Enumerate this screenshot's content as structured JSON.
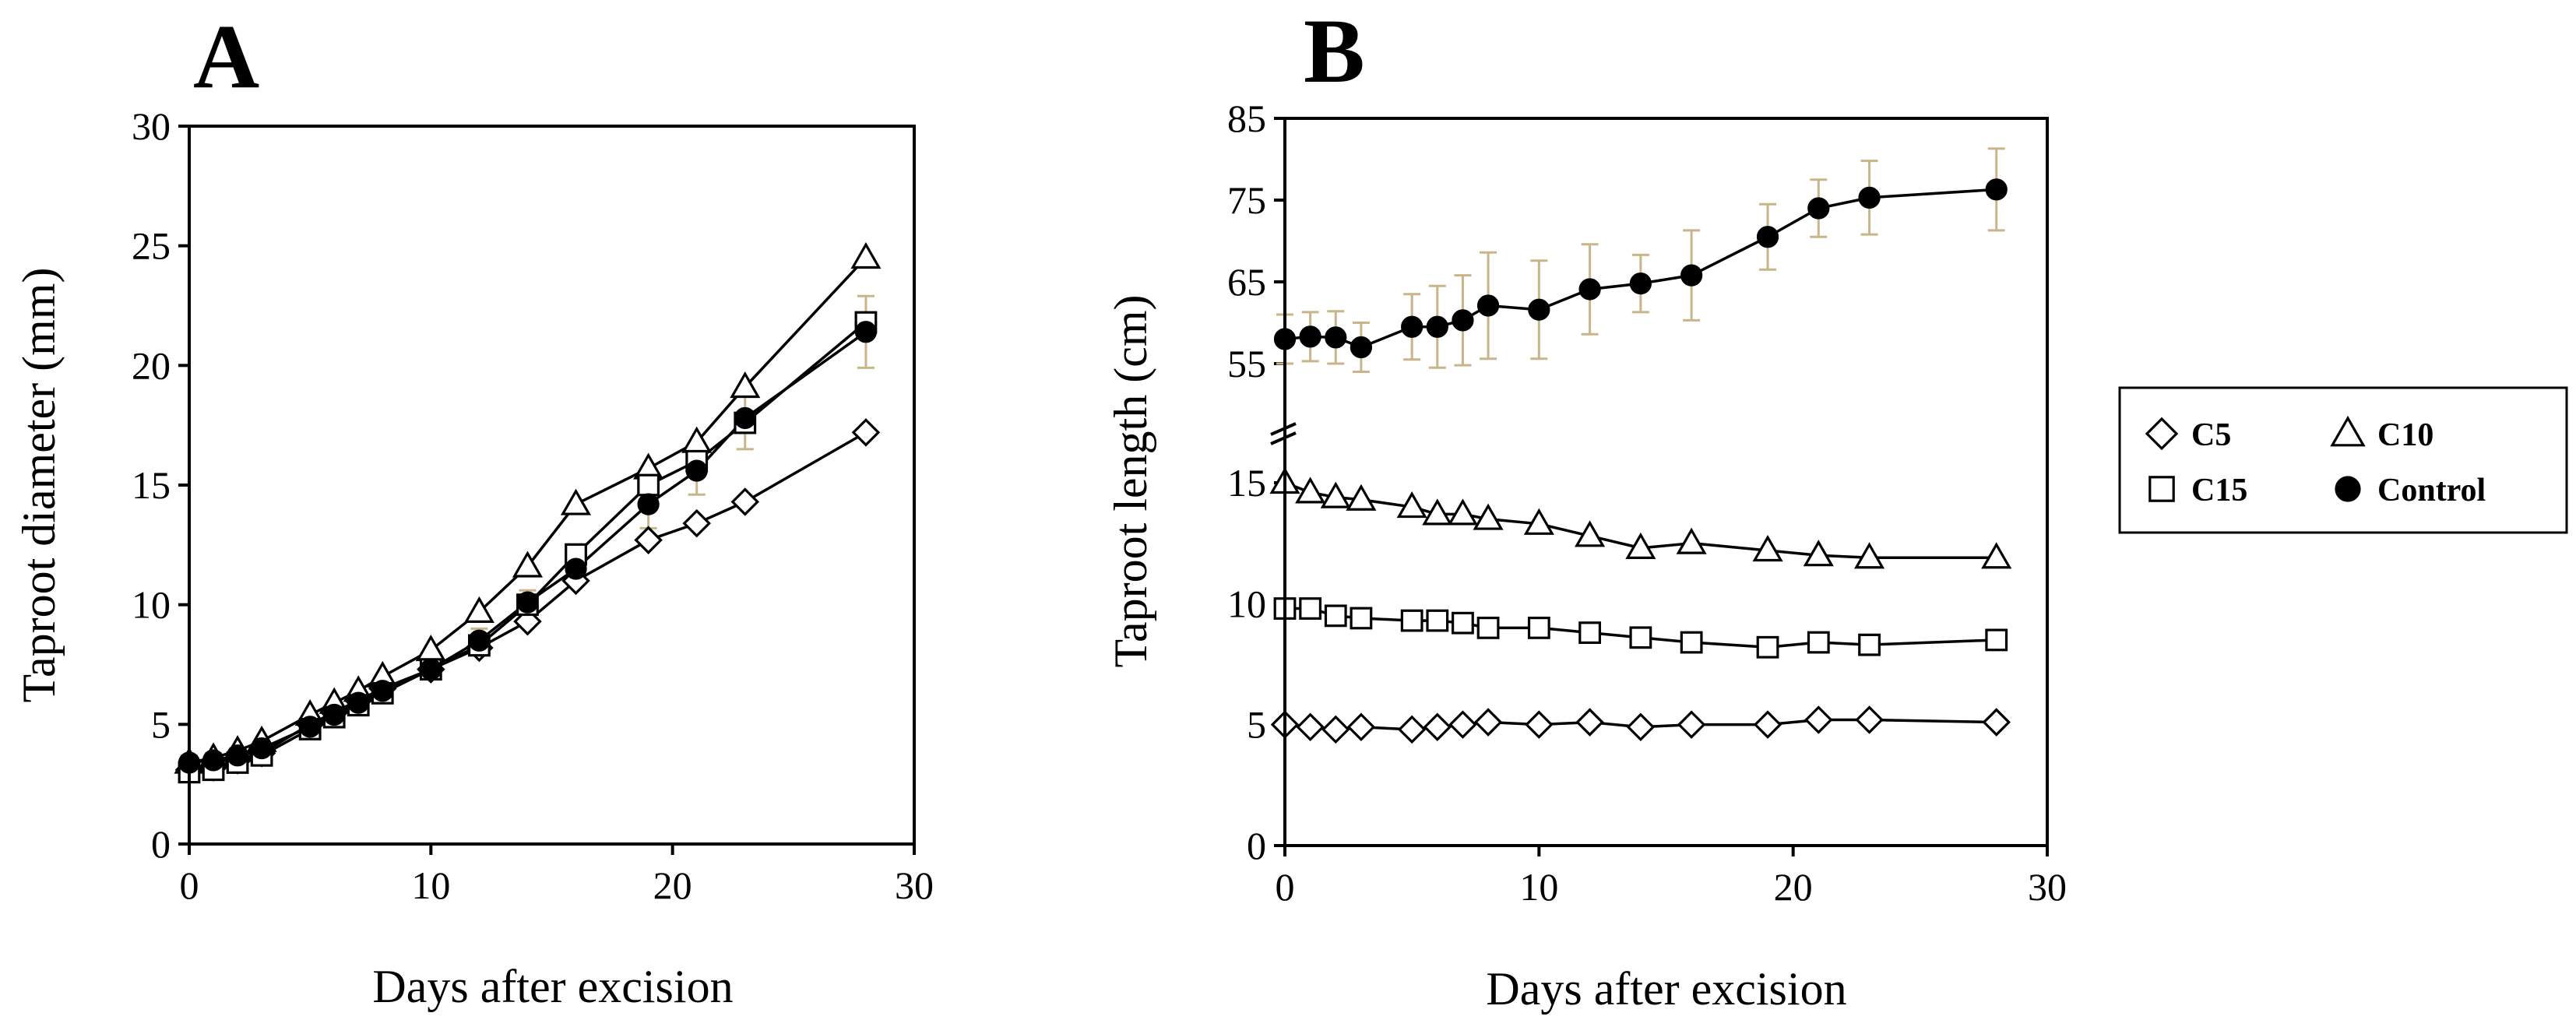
{
  "colors": {
    "ink": "#000000",
    "marker_fill_open": "#ffffff",
    "error_bar": "#c8b58a"
  },
  "legend": {
    "entries": [
      {
        "label": "C5",
        "marker": "diamond-open"
      },
      {
        "label": "C10",
        "marker": "triangle-open"
      },
      {
        "label": "C15",
        "marker": "square-open"
      },
      {
        "label": "Control",
        "marker": "circle-filled"
      }
    ]
  },
  "chart_data": [
    {
      "type": "line",
      "panel_label": "A",
      "title": "",
      "xlabel": "Days after excision",
      "ylabel": "Taproot  diameter (mm)",
      "xlim": [
        0,
        30
      ],
      "ylim": [
        0,
        30
      ],
      "xticks": [
        "0",
        "10",
        "20",
        "30"
      ],
      "yticks": [
        "0",
        "5",
        "10",
        "15",
        "20",
        "25",
        "30"
      ],
      "x": [
        0,
        1,
        2,
        3,
        5,
        6,
        7,
        8,
        10,
        12,
        14,
        16,
        19,
        21,
        23,
        28
      ],
      "series": [
        {
          "name": "C5",
          "marker": "diamond-open",
          "values": [
            3.1,
            3.2,
            3.5,
            3.8,
            5.0,
            5.5,
            6.0,
            6.5,
            7.3,
            8.2,
            9.3,
            11.0,
            12.7,
            13.4,
            14.3,
            17.2
          ]
        },
        {
          "name": "C10",
          "marker": "triangle-open",
          "values": [
            3.4,
            3.6,
            3.9,
            4.3,
            5.4,
            5.9,
            6.4,
            7.0,
            8.1,
            9.7,
            11.6,
            14.2,
            15.7,
            16.8,
            19.1,
            24.5
          ]
        },
        {
          "name": "C15",
          "marker": "square-open",
          "values": [
            3.0,
            3.1,
            3.4,
            3.7,
            4.8,
            5.3,
            5.8,
            6.3,
            7.3,
            8.3,
            10.0,
            12.1,
            15.0,
            16.0,
            17.6,
            21.8
          ]
        },
        {
          "name": "Control",
          "marker": "circle-filled",
          "values": [
            3.4,
            3.5,
            3.7,
            4.0,
            4.9,
            5.4,
            5.9,
            6.4,
            7.3,
            8.5,
            10.1,
            11.5,
            14.2,
            15.6,
            17.8,
            21.4
          ],
          "errors": [
            0.3,
            0.3,
            0.3,
            0.3,
            0.3,
            0.3,
            0.3,
            0.3,
            0.4,
            0.5,
            0.5,
            0.6,
            1.0,
            1.0,
            1.3,
            1.5
          ]
        }
      ]
    },
    {
      "type": "line",
      "panel_label": "B",
      "title": "",
      "xlabel": "Days after excision",
      "ylabel": "Taproot length (cm)",
      "xlim": [
        0,
        30
      ],
      "axis_break": true,
      "lower_ylim": [
        0,
        15
      ],
      "upper_ylim": [
        55,
        85
      ],
      "xticks": [
        "0",
        "10",
        "20",
        "30"
      ],
      "yticks_lower": [
        "0",
        "5",
        "10",
        "15"
      ],
      "yticks_upper": [
        "55",
        "65",
        "75",
        "85"
      ],
      "x": [
        0,
        1,
        2,
        3,
        5,
        6,
        7,
        8,
        10,
        12,
        14,
        16,
        19,
        21,
        23,
        28
      ],
      "series": [
        {
          "name": "C5",
          "marker": "diamond-open",
          "values": [
            5.0,
            4.9,
            4.8,
            4.9,
            4.8,
            4.9,
            5.0,
            5.1,
            5.0,
            5.1,
            4.9,
            5.0,
            5.0,
            5.2,
            5.2,
            5.1
          ]
        },
        {
          "name": "C10",
          "marker": "triangle-open",
          "values": [
            15.0,
            14.6,
            14.4,
            14.3,
            14.0,
            13.7,
            13.7,
            13.5,
            13.3,
            12.8,
            12.3,
            12.5,
            12.2,
            12.0,
            11.9,
            11.9
          ]
        },
        {
          "name": "C15",
          "marker": "square-open",
          "values": [
            9.8,
            9.8,
            9.5,
            9.4,
            9.3,
            9.3,
            9.2,
            9.0,
            9.0,
            8.8,
            8.6,
            8.4,
            8.2,
            8.4,
            8.3,
            8.5
          ]
        },
        {
          "name": "Control",
          "marker": "circle-filled",
          "values": [
            58.0,
            58.3,
            58.2,
            57.0,
            59.5,
            59.5,
            60.3,
            62.1,
            61.6,
            64.1,
            64.8,
            65.8,
            70.5,
            74.0,
            75.3,
            76.3
          ],
          "errors": [
            3.0,
            3.0,
            3.2,
            3.0,
            4.0,
            5.0,
            5.5,
            6.5,
            6.0,
            5.5,
            3.5,
            5.5,
            4.0,
            3.5,
            4.5,
            5.0
          ]
        }
      ]
    }
  ]
}
